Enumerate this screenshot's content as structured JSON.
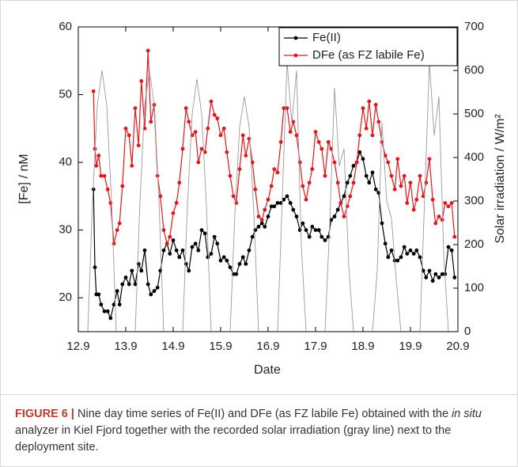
{
  "chart_data": {
    "type": "line",
    "xlabel": "Date",
    "ylabel": "[Fe] / nM",
    "y2label": "Solar irradiation / W/m²",
    "xlim": [
      12,
      20
    ],
    "ylim": [
      15,
      60
    ],
    "y2lim": [
      0,
      700
    ],
    "xticks": [
      {
        "value": 12,
        "label": "12.9"
      },
      {
        "value": 13,
        "label": "13.9"
      },
      {
        "value": 14,
        "label": "14.9"
      },
      {
        "value": 15,
        "label": "15.9"
      },
      {
        "value": 16,
        "label": "16.9"
      },
      {
        "value": 17,
        "label": "17.9"
      },
      {
        "value": 18,
        "label": "18.9"
      },
      {
        "value": 19,
        "label": "19.9"
      },
      {
        "value": 20,
        "label": "20.9"
      }
    ],
    "yticks": [
      20,
      30,
      40,
      50,
      60
    ],
    "y2ticks": [
      0,
      100,
      200,
      300,
      400,
      500,
      600,
      700
    ],
    "legend": "upper right",
    "x": [
      12.32,
      12.35,
      12.38,
      12.43,
      12.48,
      12.55,
      12.62,
      12.68,
      12.75,
      12.82,
      12.87,
      12.93,
      13.0,
      13.07,
      13.13,
      13.2,
      13.27,
      13.33,
      13.4,
      13.47,
      13.53,
      13.6,
      13.67,
      13.73,
      13.8,
      13.87,
      13.93,
      14.0,
      14.07,
      14.13,
      14.2,
      14.27,
      14.33,
      14.4,
      14.47,
      14.53,
      14.6,
      14.67,
      14.73,
      14.8,
      14.87,
      14.93,
      15.0,
      15.07,
      15.13,
      15.2,
      15.27,
      15.33,
      15.4,
      15.47,
      15.53,
      15.6,
      15.67,
      15.73,
      15.8,
      15.87,
      15.93,
      16.0,
      16.07,
      16.13,
      16.2,
      16.27,
      16.33,
      16.4,
      16.47,
      16.53,
      16.6,
      16.67,
      16.73,
      16.8,
      16.87,
      16.93,
      17.0,
      17.07,
      17.13,
      17.2,
      17.27,
      17.33,
      17.4,
      17.47,
      17.53,
      17.6,
      17.67,
      17.73,
      17.8,
      17.87,
      17.93,
      18.0,
      18.07,
      18.13,
      18.2,
      18.27,
      18.33,
      18.4,
      18.47,
      18.53,
      18.6,
      18.67,
      18.73,
      18.8,
      18.87,
      18.93,
      19.0,
      19.07,
      19.13,
      19.2,
      19.27,
      19.33,
      19.4,
      19.47,
      19.53,
      19.6,
      19.67,
      19.73,
      19.8,
      19.87,
      19.93
    ],
    "series": [
      {
        "name": "Fe(II)",
        "color": "#000000",
        "marker": true,
        "values": [
          36,
          24.5,
          20.5,
          20.5,
          19,
          18,
          18,
          17,
          19,
          21,
          19,
          22,
          23,
          22,
          24,
          22,
          25,
          24,
          27,
          22,
          20.5,
          21,
          21.5,
          24,
          27,
          28,
          26.5,
          28.5,
          27,
          26,
          27,
          25,
          24,
          27.5,
          28,
          27,
          30,
          29.5,
          26,
          26.5,
          29,
          28,
          25.5,
          26,
          25.5,
          24.5,
          23.5,
          23.5,
          25,
          26,
          25,
          27,
          29,
          30,
          30.5,
          31,
          30.5,
          32,
          33.5,
          33.5,
          34,
          34,
          34.5,
          35,
          34,
          33,
          32,
          30,
          31,
          30,
          29,
          30.5,
          30,
          30,
          29,
          28.5,
          29,
          31.5,
          32,
          33,
          34,
          35,
          37,
          38,
          39.5,
          40,
          41.5,
          40.5,
          38,
          37,
          38.5,
          36,
          35.5,
          31,
          28,
          26,
          27,
          25.5,
          25.5,
          26,
          27.5,
          26.5,
          27,
          26.5,
          27,
          26,
          24,
          23,
          24,
          22.5,
          23.5,
          23,
          23.5,
          23.5,
          27.5,
          27,
          23
        ]
      },
      {
        "name": "DFe (as FZ labile Fe)",
        "color": "#e8141b",
        "marker": true,
        "values": [
          50.5,
          42,
          39.5,
          41,
          38,
          38,
          36,
          34,
          28,
          30,
          31,
          36.5,
          45,
          44,
          39.5,
          48,
          42.5,
          52,
          45,
          56.5,
          46,
          48.5,
          38,
          35,
          30,
          28,
          29,
          32.5,
          34,
          37,
          42,
          48,
          46,
          44,
          44.5,
          40,
          42,
          41.5,
          45,
          49,
          47,
          46.5,
          44,
          45,
          41.5,
          38,
          35,
          34,
          39,
          44,
          41,
          43.5,
          40,
          36,
          32,
          31.5,
          33,
          34.5,
          36.5,
          39,
          38.5,
          43,
          48,
          48,
          44.5,
          46,
          44,
          40,
          36.5,
          34.5,
          37,
          39,
          44.5,
          43,
          42,
          38,
          43,
          42,
          40,
          37,
          34,
          32,
          33.5,
          35,
          37,
          40,
          44,
          48,
          45,
          49,
          44,
          48.5,
          46,
          43,
          41,
          40,
          38,
          36,
          40.5,
          36.5,
          38,
          34,
          37,
          33,
          34.5,
          38,
          35,
          37,
          40.5,
          34.5,
          31,
          32,
          31.5,
          34,
          33.5,
          34,
          29
        ]
      },
      {
        "color": "#9a9a9a",
        "axis": "y2",
        "marker": false,
        "x": [
          12.0,
          12.1,
          12.2,
          12.3,
          12.4,
          12.5,
          12.6,
          12.7,
          12.8,
          12.9,
          13.0,
          13.1,
          13.2,
          13.3,
          13.4,
          13.5,
          13.6,
          13.7,
          13.8,
          13.9,
          14.0,
          14.1,
          14.2,
          14.3,
          14.4,
          14.5,
          14.6,
          14.7,
          14.8,
          14.9,
          15.0,
          15.1,
          15.2,
          15.3,
          15.4,
          15.5,
          15.6,
          15.7,
          15.8,
          15.9,
          16.0,
          16.1,
          16.2,
          16.3,
          16.4,
          16.5,
          16.6,
          16.7,
          16.8,
          16.9,
          17.0,
          17.1,
          17.2,
          17.3,
          17.4,
          17.5,
          17.6,
          17.7,
          17.8,
          17.9,
          18.0,
          18.1,
          18.2,
          18.3,
          18.4,
          18.5,
          18.6,
          18.7,
          18.8,
          18.9,
          19.0,
          19.1,
          19.2,
          19.3,
          19.4,
          19.5,
          19.6,
          19.7,
          19.8,
          19.9,
          20.0
        ],
        "values": [
          0,
          0,
          0,
          300,
          520,
          600,
          520,
          300,
          0,
          0,
          0,
          0,
          0,
          300,
          520,
          600,
          520,
          300,
          0,
          0,
          0,
          0,
          0,
          290,
          500,
          580,
          500,
          290,
          0,
          0,
          0,
          0,
          0,
          270,
          470,
          540,
          470,
          270,
          0,
          0,
          0,
          0,
          0,
          310,
          620,
          480,
          600,
          200,
          0,
          0,
          0,
          0,
          0,
          250,
          560,
          380,
          420,
          150,
          0,
          0,
          0,
          0,
          0,
          140,
          480,
          300,
          260,
          120,
          0,
          0,
          0,
          0,
          0,
          310,
          620,
          450,
          540,
          180,
          0,
          0,
          0
        ]
      }
    ]
  },
  "caption": {
    "label": "FIGURE 6 |",
    "parts": [
      "Nine day time series of Fe(II) and DFe (as FZ labile Fe) obtained with the ",
      "in situ",
      " analyzer in Kiel Fjord together with the recorded solar irradiation (gray line) next to the deployment site."
    ]
  }
}
